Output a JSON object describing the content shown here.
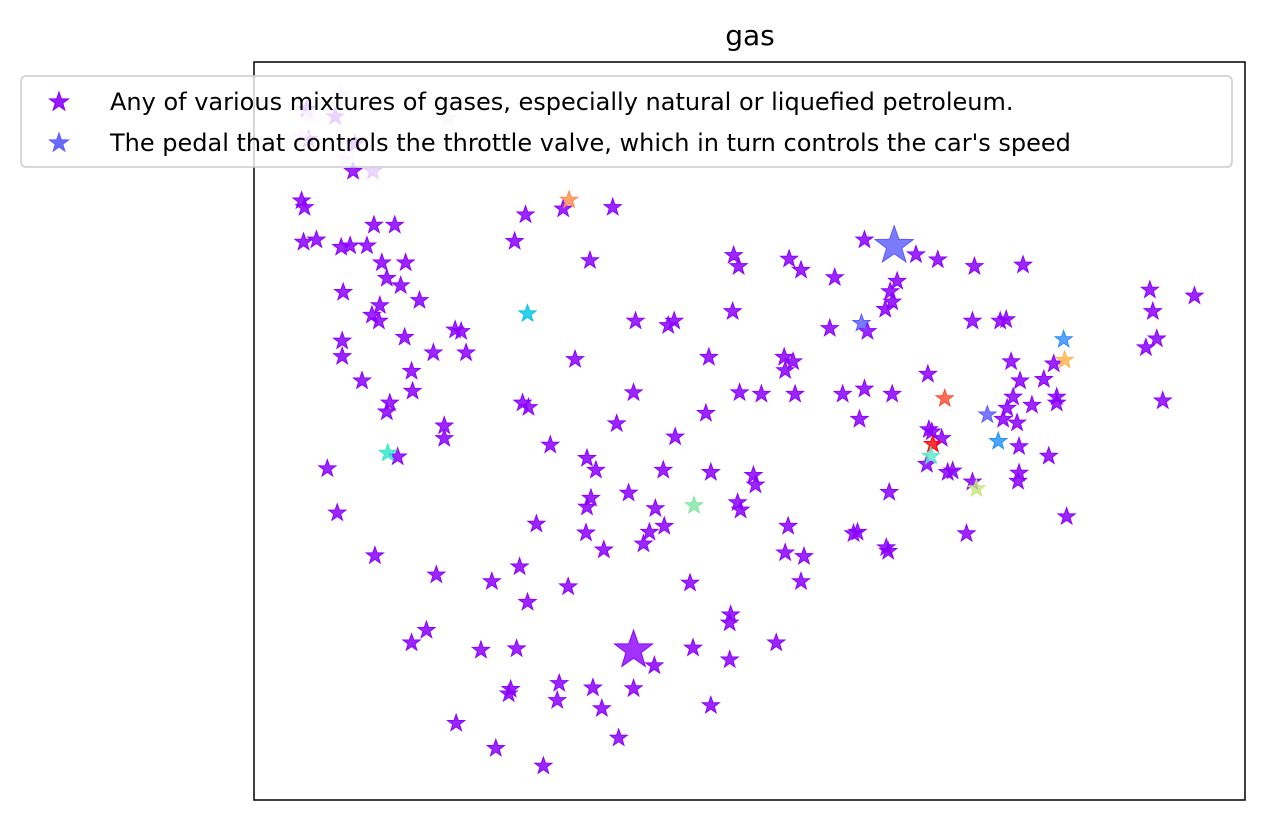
{
  "chart_data": {
    "type": "scatter",
    "title": "gas",
    "xlabel": "",
    "ylabel": "",
    "xlim": [
      0,
      100
    ],
    "ylim": [
      0,
      100
    ],
    "grid": false,
    "axes_ticks": false,
    "marker": "star",
    "legend": {
      "placement": "upper-left",
      "entries": [
        {
          "label": "Any of various mixtures of gases, especially natural or liquefied petroleum.",
          "color": "#8b00ff"
        },
        {
          "label": "The pedal that controls the throttle valve, which in turn controls the car's speed",
          "color": "#5a5aff"
        }
      ]
    },
    "series": [
      {
        "name": "Any of various mixtures of gases, especially natural or liquefied petroleum.",
        "color": "#8b00ff",
        "points": [
          [
            5.3,
            93.6
          ],
          [
            8.2,
            92.6
          ],
          [
            5.5,
            89.5
          ],
          [
            10.2,
            88.9
          ],
          [
            10.0,
            85.2
          ],
          [
            4.8,
            81.2
          ],
          [
            5.1,
            80.3
          ],
          [
            5.0,
            75.6
          ],
          [
            6.3,
            75.9
          ],
          [
            8.8,
            74.9
          ],
          [
            9.7,
            75.1
          ],
          [
            11.4,
            75.1
          ],
          [
            12.1,
            77.9
          ],
          [
            14.2,
            77.9
          ],
          [
            12.9,
            72.8
          ],
          [
            15.3,
            72.8
          ],
          [
            13.4,
            70.7
          ],
          [
            14.8,
            69.7
          ],
          [
            9.0,
            68.8
          ],
          [
            16.7,
            67.7
          ],
          [
            12.7,
            67.0
          ],
          [
            11.9,
            65.7
          ],
          [
            12.6,
            64.9
          ],
          [
            20.3,
            63.7
          ],
          [
            20.9,
            63.5
          ],
          [
            8.9,
            62.2
          ],
          [
            15.2,
            62.7
          ],
          [
            8.9,
            60.1
          ],
          [
            18.1,
            60.6
          ],
          [
            15.9,
            58.1
          ],
          [
            10.9,
            56.8
          ],
          [
            16.0,
            55.4
          ],
          [
            13.7,
            53.8
          ],
          [
            13.4,
            52.6
          ],
          [
            19.2,
            50.7
          ],
          [
            19.2,
            49.0
          ],
          [
            14.5,
            46.5
          ],
          [
            7.4,
            44.9
          ],
          [
            8.4,
            38.9
          ],
          [
            12.2,
            33.1
          ],
          [
            18.4,
            30.5
          ],
          [
            17.4,
            23.0
          ],
          [
            15.9,
            21.3
          ],
          [
            27.4,
            79.3
          ],
          [
            31.2,
            80.1
          ],
          [
            36.2,
            80.3
          ],
          [
            26.3,
            75.7
          ],
          [
            21.4,
            60.6
          ],
          [
            27.1,
            53.8
          ],
          [
            27.7,
            53.2
          ],
          [
            36.6,
            51.0
          ],
          [
            29.9,
            48.1
          ],
          [
            33.6,
            46.3
          ],
          [
            34.5,
            44.7
          ],
          [
            34.0,
            40.9
          ],
          [
            37.8,
            41.6
          ],
          [
            28.5,
            37.4
          ],
          [
            33.6,
            39.7
          ],
          [
            33.5,
            36.2
          ],
          [
            35.3,
            33.9
          ],
          [
            26.8,
            31.6
          ],
          [
            31.7,
            28.9
          ],
          [
            24.0,
            29.6
          ],
          [
            27.6,
            26.8
          ],
          [
            22.9,
            20.3
          ],
          [
            26.5,
            20.5
          ],
          [
            25.9,
            15.0
          ],
          [
            25.7,
            14.4
          ],
          [
            30.8,
            15.8
          ],
          [
            30.6,
            13.5
          ],
          [
            34.2,
            15.2
          ],
          [
            35.1,
            12.4
          ],
          [
            20.4,
            10.4
          ],
          [
            24.4,
            7.0
          ],
          [
            29.2,
            4.6
          ],
          [
            33.9,
            73.1
          ],
          [
            32.4,
            59.7
          ],
          [
            38.5,
            64.9
          ],
          [
            41.8,
            64.3
          ],
          [
            42.4,
            64.9
          ],
          [
            45.9,
            60.0
          ],
          [
            38.3,
            55.2
          ],
          [
            42.5,
            49.2
          ],
          [
            45.6,
            52.4
          ],
          [
            46.1,
            44.4
          ],
          [
            40.5,
            39.5
          ],
          [
            41.4,
            37.1
          ],
          [
            41.3,
            44.7
          ],
          [
            39.9,
            36.3
          ],
          [
            39.3,
            34.7
          ],
          [
            44.0,
            29.4
          ],
          [
            50.4,
            44.0
          ],
          [
            50.6,
            42.7
          ],
          [
            48.8,
            40.3
          ],
          [
            49.1,
            39.3
          ],
          [
            53.9,
            37.1
          ],
          [
            53.6,
            33.5
          ],
          [
            48.1,
            25.1
          ],
          [
            48.0,
            24.0
          ],
          [
            52.7,
            21.3
          ],
          [
            44.3,
            20.6
          ],
          [
            40.4,
            18.2
          ],
          [
            48.0,
            19.0
          ],
          [
            38.3,
            15.1
          ],
          [
            36.8,
            8.4
          ],
          [
            46.1,
            12.8
          ],
          [
            48.4,
            73.8
          ],
          [
            48.9,
            72.3
          ],
          [
            54.0,
            73.3
          ],
          [
            55.2,
            71.8
          ],
          [
            58.6,
            70.8
          ],
          [
            48.3,
            66.2
          ],
          [
            54.4,
            59.4
          ],
          [
            53.5,
            60.0
          ],
          [
            53.6,
            58.2
          ],
          [
            49.0,
            55.2
          ],
          [
            54.6,
            55.0
          ],
          [
            51.2,
            55.0
          ],
          [
            59.4,
            55.0
          ],
          [
            61.6,
            55.7
          ],
          [
            61.1,
            51.6
          ],
          [
            58.1,
            63.9
          ],
          [
            61.9,
            63.5
          ],
          [
            64.4,
            67.5
          ],
          [
            66.8,
            73.9
          ],
          [
            61.6,
            75.9
          ],
          [
            69.0,
            73.2
          ],
          [
            64.9,
            70.3
          ],
          [
            64.2,
            68.9
          ],
          [
            63.7,
            66.5
          ],
          [
            64.4,
            55.0
          ],
          [
            68.0,
            57.7
          ],
          [
            64.1,
            41.7
          ],
          [
            63.8,
            34.2
          ],
          [
            60.9,
            36.3
          ],
          [
            60.5,
            36.1
          ],
          [
            55.5,
            33.0
          ],
          [
            55.2,
            29.6
          ],
          [
            64.0,
            33.7
          ],
          [
            68.4,
            49.9
          ],
          [
            69.4,
            49.0
          ],
          [
            68.1,
            50.2
          ],
          [
            67.9,
            45.5
          ],
          [
            70.0,
            44.4
          ],
          [
            70.5,
            44.6
          ],
          [
            72.5,
            43.1
          ],
          [
            71.9,
            36.1
          ],
          [
            72.7,
            72.3
          ],
          [
            77.6,
            72.5
          ],
          [
            75.3,
            64.9
          ],
          [
            75.9,
            65.1
          ],
          [
            76.4,
            59.4
          ],
          [
            77.3,
            56.8
          ],
          [
            76.6,
            54.6
          ],
          [
            76.0,
            53.1
          ],
          [
            75.6,
            51.6
          ],
          [
            77.0,
            51.1
          ],
          [
            77.2,
            47.9
          ],
          [
            80.7,
            59.1
          ],
          [
            79.7,
            57.0
          ],
          [
            81.0,
            54.6
          ],
          [
            81.0,
            53.8
          ],
          [
            80.2,
            46.6
          ],
          [
            77.2,
            44.3
          ],
          [
            77.1,
            43.2
          ],
          [
            82.0,
            38.4
          ],
          [
            90.4,
            69.1
          ],
          [
            91.1,
            62.5
          ],
          [
            90.7,
            66.2
          ],
          [
            94.9,
            68.3
          ],
          [
            90.0,
            61.3
          ],
          [
            91.7,
            54.1
          ],
          [
            72.5,
            64.9
          ],
          [
            78.5,
            53.5
          ]
        ]
      }
    ],
    "highlights": [
      {
        "color": "#8b00ff",
        "points": [
          [
            38.3,
            20.3
          ]
        ],
        "size": "large"
      },
      {
        "color": "#5a5aff",
        "points": [
          [
            64.6,
            75.1
          ]
        ],
        "size": "large"
      },
      {
        "color": "#5a5aff",
        "points": [
          [
            61.3,
            64.6
          ],
          [
            74.0,
            52.2
          ]
        ]
      },
      {
        "color": "#ff8c4a",
        "points": [
          [
            31.8,
            81.3
          ]
        ]
      },
      {
        "color": "#00c4e6",
        "points": [
          [
            27.6,
            65.9
          ]
        ]
      },
      {
        "color": "#2ee6c8",
        "points": [
          [
            13.5,
            47.0
          ]
        ]
      },
      {
        "color": "#7fe6a0",
        "points": [
          [
            44.4,
            39.9
          ]
        ]
      },
      {
        "color": "#ff4a2e",
        "points": [
          [
            69.7,
            54.4
          ]
        ]
      },
      {
        "color": "#ff0000",
        "points": [
          [
            68.5,
            48.2
          ]
        ]
      },
      {
        "color": "#5ae6c8",
        "points": [
          [
            68.3,
            46.6
          ]
        ]
      },
      {
        "color": "#c8e67f",
        "points": [
          [
            72.9,
            42.2
          ]
        ]
      },
      {
        "color": "#1e90ff",
        "points": [
          [
            75.1,
            48.6
          ]
        ]
      },
      {
        "color": "#2e8cff",
        "points": [
          [
            81.7,
            62.4
          ]
        ]
      },
      {
        "color": "#ffb44a",
        "points": [
          [
            81.8,
            59.6
          ]
        ]
      },
      {
        "color": "#e6ccff",
        "points": [
          [
            5.6,
            92.9
          ],
          [
            4.8,
            89.9
          ],
          [
            9.2,
            86.9
          ],
          [
            12.0,
            85.2
          ],
          [
            19.6,
            92.4
          ],
          [
            8.8,
            95.6
          ]
        ]
      }
    ]
  }
}
